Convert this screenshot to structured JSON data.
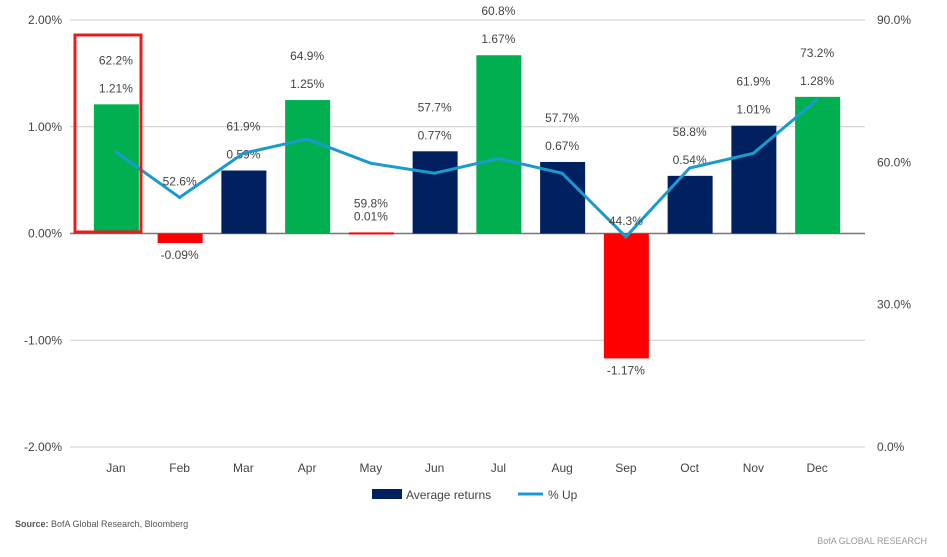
{
  "chart_data": {
    "type": "bar+line",
    "categories": [
      "Jan",
      "Feb",
      "Mar",
      "Apr",
      "May",
      "Jun",
      "Jul",
      "Aug",
      "Sep",
      "Oct",
      "Nov",
      "Dec"
    ],
    "series": [
      {
        "name": "Average returns",
        "axis": "left",
        "type": "bar",
        "values": [
          1.21,
          -0.09,
          0.59,
          1.25,
          0.01,
          0.77,
          1.67,
          0.67,
          -1.17,
          0.54,
          1.01,
          1.28
        ],
        "labels": [
          "1.21%",
          "-0.09%",
          "0.59%",
          "1.25%",
          "0.01%",
          "0.77%",
          "1.67%",
          "0.67%",
          "-1.17%",
          "0.54%",
          "1.01%",
          "1.28%"
        ],
        "bar_colors": [
          "#00b050",
          "#ff0000",
          "#002060",
          "#00b050",
          "#ff0000",
          "#002060",
          "#00b050",
          "#002060",
          "#ff0000",
          "#002060",
          "#002060",
          "#00b050"
        ]
      },
      {
        "name": "% Up",
        "axis": "right",
        "type": "line",
        "values": [
          62.2,
          52.6,
          61.9,
          64.9,
          59.8,
          57.7,
          60.8,
          57.7,
          44.3,
          58.8,
          61.9,
          73.2
        ],
        "labels": [
          "62.2%",
          "52.6%",
          "61.9%",
          "64.9%",
          "59.8%",
          "57.7%",
          "60.8%",
          "57.7%",
          "44.3%",
          "58.8%",
          "61.9%",
          "73.2%"
        ],
        "color": "#1a9bcf"
      }
    ],
    "left_axis": {
      "ylim": [
        -2,
        2
      ],
      "ticks": [
        "2.00%",
        "1.00%",
        "0.00%",
        "-1.00%",
        "-2.00%"
      ]
    },
    "right_axis": {
      "ylim": [
        0,
        90
      ],
      "ticks": [
        "90.0%",
        "60.0%",
        "30.0%",
        "0.0%"
      ]
    },
    "grid": true,
    "legend": "bottom",
    "highlight": {
      "category": "Jan",
      "color": "#e02020"
    },
    "legend_color": "#002060"
  },
  "footer": {
    "source_label": "Source:",
    "source_text": " BofA Global Research, Bloomberg",
    "brand": "BofA GLOBAL RESEARCH"
  }
}
